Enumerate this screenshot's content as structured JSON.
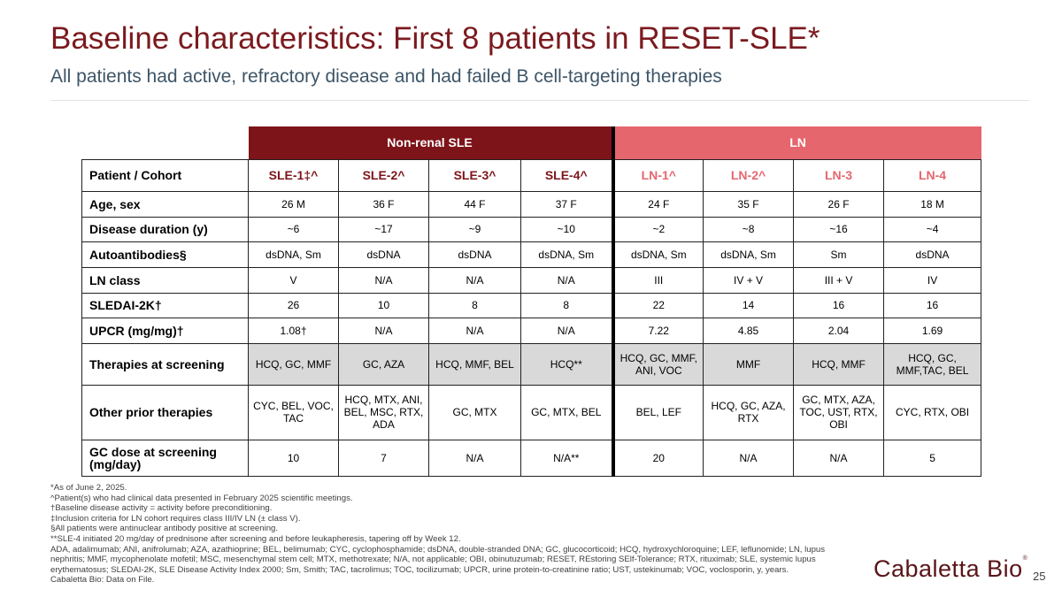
{
  "title": "Baseline characteristics: First 8 patients in RESET-SLE*",
  "subtitle": "All patients had active, refractory disease and had failed B cell-targeting therapies",
  "table": {
    "groups": [
      "Non-renal SLE",
      "LN"
    ],
    "header_label": "Patient / Cohort",
    "patients": [
      "SLE-1‡^",
      "SLE-2^",
      "SLE-3^",
      "SLE-4^",
      "LN-1^",
      "LN-2^",
      "LN-3",
      "LN-4"
    ],
    "rows": [
      {
        "label": "Age, sex",
        "values": [
          "26 M",
          "36 F",
          "44 F",
          "37 F",
          "24 F",
          "35 F",
          "26 F",
          "18 M"
        ]
      },
      {
        "label": "Disease duration (y)",
        "values": [
          "~6",
          "~17",
          "~9",
          "~10",
          "~2",
          "~8",
          "~16",
          "~4"
        ]
      },
      {
        "label": "Autoantibodies§",
        "values": [
          "dsDNA, Sm",
          "dsDNA",
          "dsDNA",
          "dsDNA, Sm",
          "dsDNA, Sm",
          "dsDNA, Sm",
          "Sm",
          "dsDNA"
        ]
      },
      {
        "label": "LN class",
        "values": [
          "V",
          "N/A",
          "N/A",
          "N/A",
          "III",
          "IV + V",
          "III + V",
          "IV"
        ]
      },
      {
        "label": "SLEDAI-2K†",
        "values": [
          "26",
          "10",
          "8",
          "8",
          "22",
          "14",
          "16",
          "16"
        ]
      },
      {
        "label": "UPCR (mg/mg)†",
        "values": [
          "1.08†",
          "N/A",
          "N/A",
          "N/A",
          "7.22",
          "4.85",
          "2.04",
          "1.69"
        ]
      },
      {
        "label": "Therapies at screening",
        "values": [
          "HCQ, GC, MMF",
          "GC, AZA",
          "HCQ, MMF, BEL",
          "HCQ**",
          "HCQ, GC, MMF, ANI, VOC",
          "MMF",
          "HCQ, MMF",
          "HCQ, GC, MMF,TAC, BEL"
        ]
      },
      {
        "label": "Other prior therapies",
        "values": [
          "CYC, BEL, VOC, TAC",
          "HCQ, MTX, ANI, BEL, MSC, RTX, ADA",
          "GC, MTX",
          "GC, MTX, BEL",
          "BEL, LEF",
          "HCQ, GC, AZA, RTX",
          "GC, MTX, AZA, TOC, UST, RTX, OBI",
          "CYC, RTX, OBI"
        ]
      },
      {
        "label": "GC dose at screening (mg/day)",
        "values": [
          "10",
          "7",
          "N/A",
          "N/A**",
          "20",
          "N/A",
          "N/A",
          "5"
        ]
      }
    ]
  },
  "footnotes": [
    "*As of June 2, 2025.",
    "^Patient(s) who had clinical data presented in February 2025 scientific meetings.",
    "†Baseline disease activity = activity before preconditioning.",
    "‡Inclusion criteria for LN cohort requires class III/IV LN (± class V).",
    "§All patients were antinuclear antibody positive at screening.",
    "**SLE-4 initiated 20 mg/day of prednisone after screening and before leukapheresis, tapering off by Week 12.",
    "ADA, adalimumab; ANI, anifrolumab; AZA, azathioprine; BEL, belimumab; CYC, cyclophosphamide; dsDNA, double-stranded DNA; GC, glucocorticoid; HCQ, hydroxychloroquine; LEF, leflunomide; LN, lupus nephritis; MMF, mycophenolate mofetil; MSC, mesenchymal stem cell; MTX, methotrexate; N/A, not applicable; OBI, obinutuzumab; RESET, REstoring SElf-Tolerance; RTX, rituximab; SLE, systemic lupus erythematosus; SLEDAI-2K, SLE Disease Activity Index 2000; Sm, Smith; TAC, tacrolimus; TOC, tocilizumab; UPCR, urine protein-to-creatinine ratio; UST, ustekinumab; VOC, voclosporin, y, years.",
    "Cabaletta Bio: Data on File."
  ],
  "logo": "Cabaletta Bio",
  "page_number": "25",
  "colors": {
    "title": "#7b1a1f",
    "non_renal": "#7d1419",
    "ln": "#e6666e"
  }
}
